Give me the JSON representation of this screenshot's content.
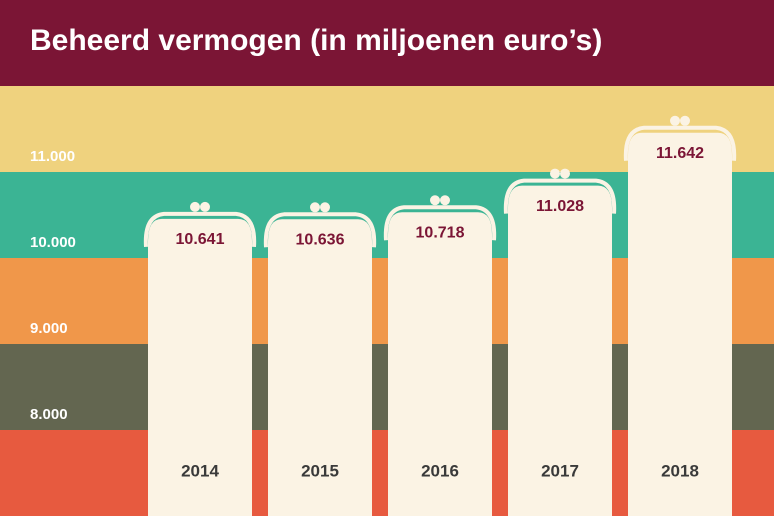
{
  "chart_data": {
    "type": "bar",
    "title": "Beheerd vermogen (in miljoenen euro’s)",
    "categories": [
      "2014",
      "2015",
      "2016",
      "2017",
      "2018"
    ],
    "values": [
      10641,
      10636,
      10718,
      11028,
      11642
    ],
    "value_labels": [
      "10.641",
      "10.636",
      "10.718",
      "11.028",
      "11.642"
    ],
    "color": "#fbf3e4",
    "ylim": [
      7000,
      12000
    ],
    "yticks": [
      {
        "value": 8000,
        "label": "8.000"
      },
      {
        "value": 9000,
        "label": "9.000"
      },
      {
        "value": 10000,
        "label": "10.000"
      },
      {
        "value": 11000,
        "label": "11.000"
      }
    ],
    "band_colors": [
      "#e75a3f",
      "#636650",
      "#f0974a",
      "#3bb494",
      "#efd27e"
    ]
  }
}
